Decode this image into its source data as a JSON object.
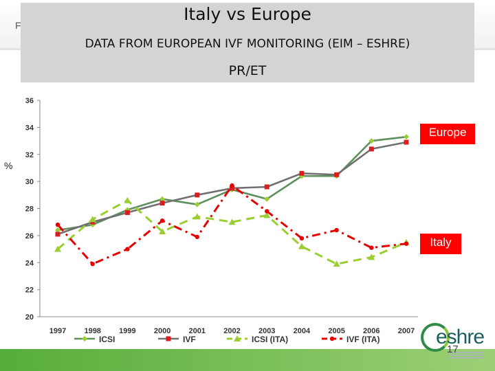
{
  "header": {
    "stray_letter": "F",
    "title": "Italy vs Europe",
    "subtitle": "DATA FROM EUROPEAN IVF MONITORING (EIM – ESHRE)",
    "metric": "PR/ET"
  },
  "unit_label": "%",
  "tags": {
    "europe": "Europe",
    "italy": "Italy"
  },
  "logo_text": "eshre",
  "page_number": "17",
  "colors": {
    "icsi": "#5d8f5f",
    "ivf": "#d81e1e",
    "icsi_ita": "#9acd32",
    "ivf_ita": "#e60000",
    "tag": "#ff0000",
    "bottom_bar": "#6ab04c"
  },
  "chart_data": {
    "type": "line",
    "categories": [
      "1997",
      "1998",
      "1999",
      "2000",
      "2001",
      "2002",
      "2003",
      "2004",
      "2005",
      "2006",
      "2007"
    ],
    "ylim": [
      20,
      36
    ],
    "yticks": [
      "20",
      "22",
      "24",
      "26",
      "28",
      "30",
      "32",
      "34",
      "36"
    ],
    "grid": false,
    "legend_position": "bottom",
    "series": [
      {
        "name": "ICSI",
        "values": [
          26.4,
          26.8,
          27.9,
          28.7,
          28.3,
          29.4,
          28.7,
          30.4,
          30.4,
          33.0,
          33.3
        ]
      },
      {
        "name": "IVF",
        "values": [
          26.1,
          27.0,
          27.7,
          28.4,
          29.0,
          29.5,
          29.6,
          30.6,
          30.5,
          32.4,
          32.9
        ]
      },
      {
        "name": "ICSI (ITA)",
        "values": [
          25.0,
          27.2,
          28.6,
          26.3,
          27.4,
          27.0,
          27.5,
          25.2,
          23.9,
          24.4,
          25.5
        ]
      },
      {
        "name": "IVF (ITA)",
        "values": [
          26.8,
          23.9,
          25.0,
          27.1,
          25.9,
          29.7,
          27.8,
          25.8,
          26.4,
          25.1,
          25.4
        ]
      }
    ]
  }
}
